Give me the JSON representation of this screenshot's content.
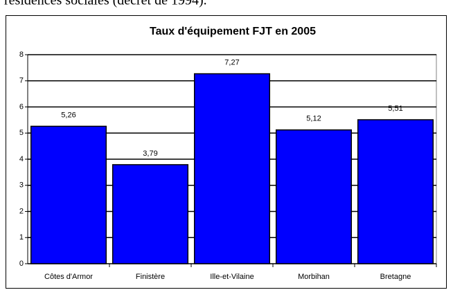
{
  "text_above": "résidences sociales (décret de 1994).",
  "chart_data": {
    "type": "bar",
    "title": "Taux d'équipement FJT en 2005",
    "categories": [
      "Côtes d'Armor",
      "Finistère",
      "Ille-et-Vilaine",
      "Morbihan",
      "Bretagne"
    ],
    "values": [
      5.26,
      3.79,
      7.27,
      5.12,
      5.51
    ],
    "value_labels": [
      "5,26",
      "3,79",
      "7,27",
      "5,12",
      "5,51"
    ],
    "color": "#0000ff",
    "ylim": [
      0,
      8
    ],
    "yticks": [
      0,
      1,
      2,
      3,
      4,
      5,
      6,
      7,
      8
    ],
    "grid": true
  }
}
